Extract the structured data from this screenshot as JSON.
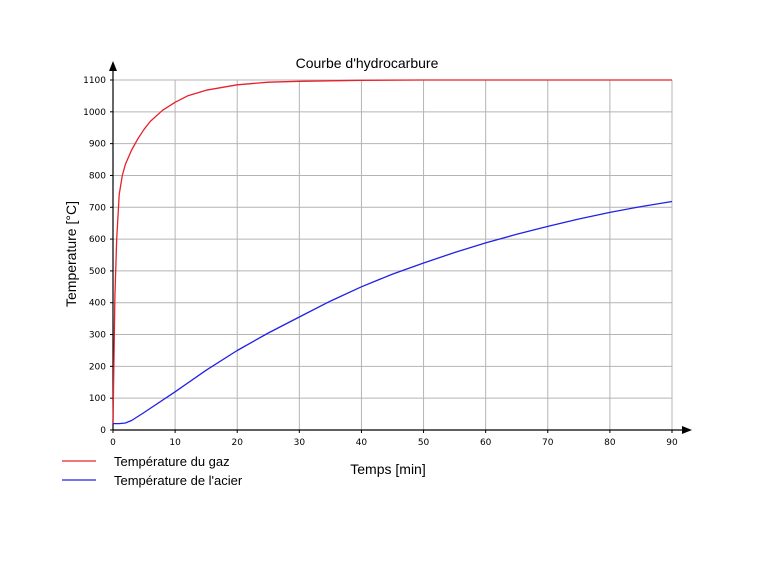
{
  "chart_data": {
    "type": "line",
    "title": "Courbe d'hydrocarbure",
    "xlabel": "Temps [min]",
    "ylabel": "Temperature [°C]",
    "xlim": [
      0,
      90
    ],
    "ylim": [
      0,
      1100
    ],
    "xticks": [
      0,
      10,
      20,
      30,
      40,
      50,
      60,
      70,
      80,
      90
    ],
    "yticks": [
      0,
      100,
      200,
      300,
      400,
      500,
      600,
      700,
      800,
      900,
      1000,
      1100
    ],
    "grid": true,
    "legend_position": "bottom-left",
    "series": [
      {
        "name": "Température du gaz",
        "color": "#e8202a",
        "x": [
          0,
          0.3,
          0.6,
          1,
          1.5,
          2,
          3,
          4,
          5,
          6,
          8,
          10,
          12,
          15,
          20,
          25,
          30,
          40,
          50,
          60,
          70,
          80,
          90
        ],
        "y": [
          20,
          420,
          600,
          740,
          800,
          835,
          880,
          915,
          945,
          970,
          1005,
          1030,
          1050,
          1068,
          1085,
          1093,
          1096,
          1099,
          1100,
          1100,
          1100,
          1100,
          1100
        ]
      },
      {
        "name": "Température de l'acier",
        "color": "#2020e8",
        "x": [
          0,
          1,
          2,
          3,
          5,
          10,
          15,
          20,
          25,
          30,
          35,
          40,
          45,
          50,
          55,
          60,
          65,
          70,
          75,
          80,
          85,
          90
        ],
        "y": [
          20,
          20,
          22,
          30,
          55,
          120,
          188,
          250,
          305,
          355,
          405,
          450,
          490,
          525,
          558,
          588,
          615,
          640,
          663,
          684,
          702,
          718
        ]
      }
    ]
  }
}
